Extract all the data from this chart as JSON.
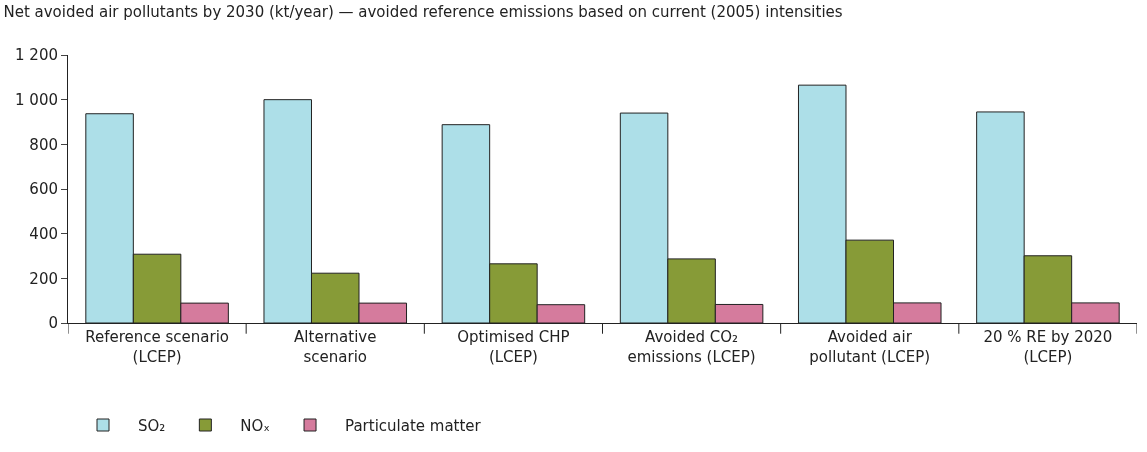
{
  "chart_data": {
    "type": "bar",
    "title": "Net avoided air pollutants by 2030 (kt/year) — avoided reference emissions based on current (2005) intensities",
    "categories": [
      "Reference scenario (LCEP)",
      "Alternative scenario",
      "Optimised CHP (LCEP)",
      "Avoided CO₂ emissions (LCEP)",
      "Avoided air pollutant (LCEP)",
      "20 % RE by 2020 (LCEP)"
    ],
    "series": [
      {
        "name": "SO₂",
        "color": "#addfe8",
        "values": [
          937,
          1000,
          888,
          940,
          1065,
          945
        ]
      },
      {
        "name": "NOₓ",
        "color": "#879b37",
        "values": [
          308,
          223,
          265,
          287,
          371,
          301
        ]
      },
      {
        "name": "Particulate matter",
        "color": "#d57b9d",
        "values": [
          89,
          89,
          82,
          83,
          90,
          90
        ]
      }
    ],
    "ylim": [
      0,
      1200
    ],
    "yticks": [
      {
        "value": 0,
        "label": "0"
      },
      {
        "value": 200,
        "label": "200"
      },
      {
        "value": 400,
        "label": "400"
      },
      {
        "value": 600,
        "label": "600"
      },
      {
        "value": 800,
        "label": "800"
      },
      {
        "value": 1000,
        "label": "1 000"
      },
      {
        "value": 1200,
        "label": "1 200"
      }
    ],
    "grid": false,
    "legend": "bottom left"
  }
}
